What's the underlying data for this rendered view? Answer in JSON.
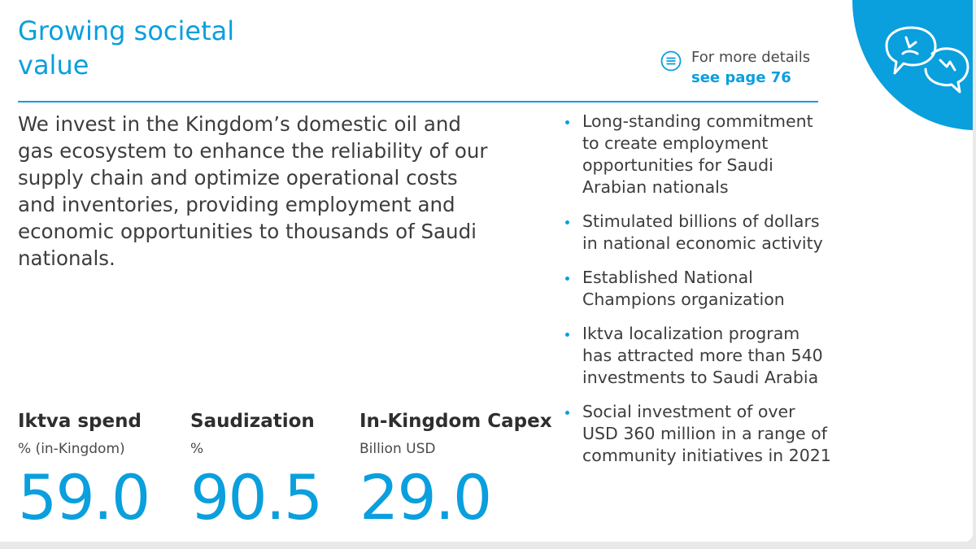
{
  "title": "Growing societal value",
  "details": {
    "label": "For more details",
    "link": "see page 76",
    "icon": "document-lines-icon"
  },
  "corner_icon": "speech-bubbles-icon",
  "intro": "We invest in the Kingdom’s domestic oil and gas ecosystem to enhance the reliability of our supply chain and optimize operational costs and inventories, providing employment and economic opportunities to thousands of Saudi nationals.",
  "bullets": [
    "Long-standing commitment to create employment opportunities for Saudi Arabian nationals",
    "Stimulated billions of dollars in national economic activity",
    "Established National Champions organization",
    "Iktva localization program has attracted more than 540 investments to Saudi Arabia",
    "Social investment of over USD 360 million in a range of community initiatives in 2021"
  ],
  "stats": [
    {
      "heading": "Iktva spend",
      "unit": "% (in-Kingdom)",
      "value": "59.0"
    },
    {
      "heading": "Saudization",
      "unit": "%",
      "value": "90.5"
    },
    {
      "heading": "In-Kingdom Capex",
      "unit": "Billion USD",
      "value": "29.0"
    }
  ],
  "colors": {
    "accent": "#0a9fdd",
    "text": "#3d3d3d",
    "background": "#ffffff"
  }
}
